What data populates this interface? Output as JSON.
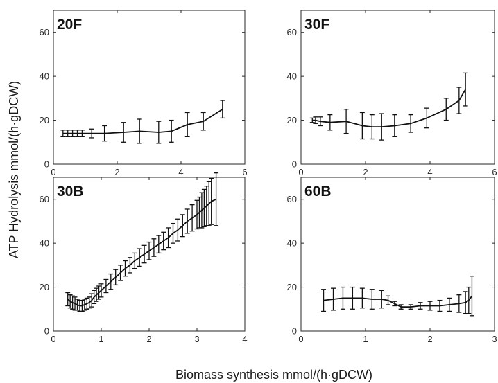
{
  "figure": {
    "xlabel": "Biomass synthesis mmol/(h·gDCW)",
    "ylabel": "ATP Hydrolysis mmol/(h·gDCW)"
  },
  "chart_data": [
    {
      "type": "line",
      "title": "20F",
      "xlim": [
        0,
        6
      ],
      "ylim": [
        0,
        70
      ],
      "xticks": [
        0,
        2,
        4,
        6
      ],
      "yticks": [
        0,
        20,
        40,
        60
      ],
      "x": [
        0.3,
        0.45,
        0.6,
        0.75,
        0.9,
        1.2,
        1.6,
        2.2,
        2.7,
        3.3,
        3.7,
        4.2,
        4.7,
        5.3
      ],
      "y": [
        14.0,
        14.0,
        14.0,
        14.0,
        14.0,
        14.0,
        14.0,
        14.5,
        15.0,
        14.5,
        15.0,
        18.0,
        19.5,
        25.0
      ],
      "yerr": [
        1.5,
        1.5,
        1.5,
        1.5,
        1.5,
        2.0,
        3.5,
        4.5,
        5.5,
        5.0,
        5.0,
        5.5,
        4.0,
        4.0
      ]
    },
    {
      "type": "line",
      "title": "30F",
      "xlim": [
        0,
        6
      ],
      "ylim": [
        0,
        70
      ],
      "xticks": [
        0,
        2,
        4,
        6
      ],
      "yticks": [
        0,
        20,
        40,
        60
      ],
      "x": [
        0.35,
        0.45,
        0.6,
        0.9,
        1.4,
        1.9,
        2.2,
        2.5,
        2.9,
        3.4,
        3.9,
        4.5,
        4.9,
        5.1
      ],
      "y": [
        20.0,
        20.0,
        19.5,
        19.0,
        19.5,
        17.5,
        17.0,
        17.0,
        17.5,
        18.5,
        21.0,
        25.0,
        29.0,
        34.0
      ],
      "yerr": [
        1.0,
        1.5,
        2.0,
        3.5,
        5.5,
        6.0,
        5.5,
        6.0,
        5.0,
        4.0,
        4.5,
        5.0,
        6.0,
        7.5
      ]
    },
    {
      "type": "line",
      "title": "30B",
      "xlim": [
        0,
        4
      ],
      "ylim": [
        0,
        70
      ],
      "xticks": [
        0,
        1,
        2,
        3,
        4
      ],
      "yticks": [
        0,
        20,
        40,
        60
      ],
      "x": [
        0.3,
        0.35,
        0.4,
        0.45,
        0.5,
        0.55,
        0.6,
        0.65,
        0.7,
        0.75,
        0.8,
        0.85,
        0.9,
        0.95,
        1.0,
        1.1,
        1.2,
        1.3,
        1.4,
        1.5,
        1.6,
        1.7,
        1.8,
        1.9,
        2.0,
        2.1,
        2.2,
        2.3,
        2.4,
        2.5,
        2.6,
        2.7,
        2.8,
        2.9,
        3.0,
        3.05,
        3.1,
        3.15,
        3.2,
        3.25,
        3.3,
        3.4
      ],
      "y": [
        14.5,
        13.5,
        13.0,
        12.5,
        12.0,
        11.5,
        11.5,
        12.0,
        12.5,
        13.0,
        14.0,
        15.5,
        16.5,
        17.5,
        18.5,
        20.5,
        22.5,
        24.5,
        26.5,
        28.5,
        30.0,
        32.0,
        33.5,
        35.0,
        36.5,
        38.0,
        39.5,
        41.0,
        42.5,
        44.5,
        46.0,
        48.0,
        50.0,
        51.5,
        53.0,
        54.0,
        55.0,
        56.0,
        57.0,
        58.0,
        59.0,
        60.0
      ],
      "yerr": [
        3.0,
        3.0,
        3.0,
        3.0,
        2.5,
        2.5,
        2.5,
        2.5,
        2.5,
        2.5,
        3.0,
        3.0,
        3.0,
        3.0,
        3.0,
        3.0,
        3.5,
        3.5,
        3.5,
        3.5,
        3.5,
        3.5,
        4.0,
        4.0,
        4.0,
        4.0,
        4.0,
        4.0,
        4.5,
        4.5,
        5.0,
        5.0,
        5.5,
        6.0,
        6.5,
        7.0,
        8.0,
        8.5,
        9.0,
        10.0,
        10.5,
        12.0
      ]
    },
    {
      "type": "line",
      "title": "60B",
      "xlim": [
        0,
        3
      ],
      "ylim": [
        0,
        70
      ],
      "xticks": [
        0,
        1,
        2,
        3
      ],
      "yticks": [
        0,
        20,
        40,
        60
      ],
      "x": [
        0.35,
        0.5,
        0.65,
        0.8,
        0.95,
        1.1,
        1.25,
        1.35,
        1.45,
        1.55,
        1.7,
        1.85,
        2.0,
        2.15,
        2.3,
        2.45,
        2.55,
        2.6,
        2.65
      ],
      "y": [
        14.0,
        14.5,
        15.0,
        15.0,
        15.0,
        14.5,
        14.5,
        14.0,
        12.5,
        11.0,
        11.0,
        11.5,
        11.5,
        11.5,
        12.0,
        12.5,
        13.0,
        14.0,
        16.0
      ],
      "yerr": [
        5.0,
        5.0,
        5.0,
        5.0,
        4.5,
        4.5,
        4.0,
        2.0,
        1.0,
        1.0,
        1.0,
        1.5,
        2.0,
        2.5,
        3.0,
        4.0,
        5.0,
        6.0,
        9.0
      ]
    }
  ]
}
